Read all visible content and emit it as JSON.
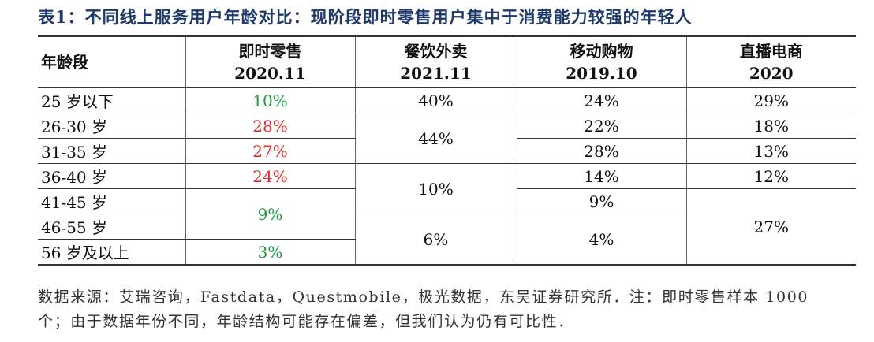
{
  "title": "表1：不同线上服务用户年龄对比：现阶段即时零售用户集中于消费能力较强的年轻人",
  "table": {
    "headers": [
      {
        "name": "年龄段"
      },
      {
        "name": "即时零售",
        "date": "2020.11"
      },
      {
        "name": "餐饮外卖",
        "date": "2021.11"
      },
      {
        "name": "移动购物",
        "date": "2019.10"
      },
      {
        "name": "直播电商",
        "date": "2020"
      }
    ],
    "age_groups": [
      "25 岁以下",
      "26-30 岁",
      "31-35 岁",
      "36-40 岁",
      "41-45 岁",
      "46-55 岁",
      "56 岁及以上"
    ],
    "columns": [
      {
        "cells": [
          {
            "text": "10%",
            "rowspan": 1,
            "color": "#1a9a3c"
          },
          {
            "text": "28%",
            "rowspan": 1,
            "color": "#e03030"
          },
          {
            "text": "27%",
            "rowspan": 1,
            "color": "#e03030"
          },
          {
            "text": "24%",
            "rowspan": 1,
            "color": "#e03030"
          },
          {
            "text": "9%",
            "rowspan": 2,
            "color": "#1a9a3c"
          },
          {
            "text": "3%",
            "rowspan": 1,
            "color": "#1a9a3c"
          }
        ]
      },
      {
        "cells": [
          {
            "text": "40%",
            "rowspan": 1
          },
          {
            "text": "44%",
            "rowspan": 2
          },
          {
            "text": "10%",
            "rowspan": 2
          },
          {
            "text": "6%",
            "rowspan": 2
          }
        ]
      },
      {
        "cells": [
          {
            "text": "24%",
            "rowspan": 1
          },
          {
            "text": "22%",
            "rowspan": 1
          },
          {
            "text": "28%",
            "rowspan": 1
          },
          {
            "text": "14%",
            "rowspan": 1
          },
          {
            "text": "9%",
            "rowspan": 1
          },
          {
            "text": "4%",
            "rowspan": 2
          }
        ]
      },
      {
        "cells": [
          {
            "text": "29%",
            "rowspan": 1
          },
          {
            "text": "18%",
            "rowspan": 1
          },
          {
            "text": "13%",
            "rowspan": 1
          },
          {
            "text": "12%",
            "rowspan": 1
          },
          {
            "text": "27%",
            "rowspan": 3
          }
        ]
      }
    ]
  },
  "footnote": "数据来源：艾瑞咨询，Fastdata，Questmobile，极光数据，东吴证券研究所．注：即时零售样本 1000 个；由于数据年份不同，年龄结构可能存在偏差，但我们认为仍有可比性．"
}
